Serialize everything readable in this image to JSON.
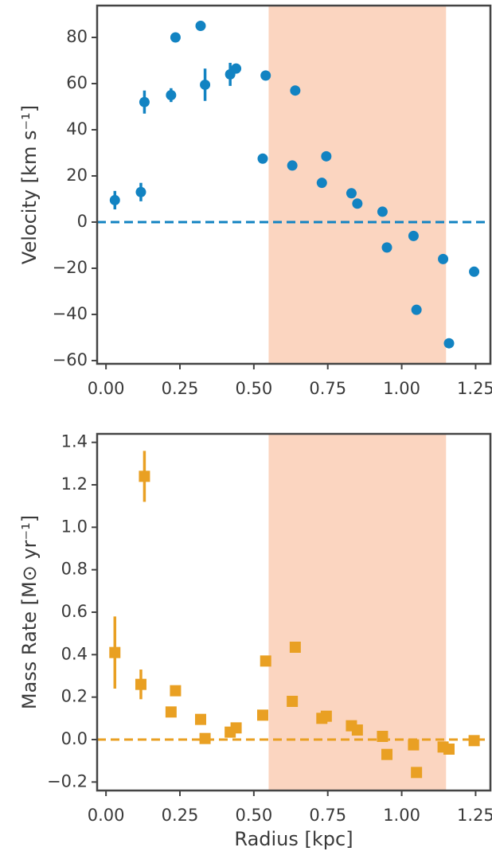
{
  "chart_data": [
    {
      "type": "scatter",
      "marker": "circle",
      "color": "#1283c2",
      "ylabel": "Velocity [km s⁻¹]",
      "x": [
        0.03,
        0.118,
        0.13,
        0.22,
        0.235,
        0.32,
        0.335,
        0.42,
        0.44,
        0.53,
        0.54,
        0.63,
        0.64,
        0.73,
        0.745,
        0.83,
        0.85,
        0.935,
        0.95,
        1.04,
        1.05,
        1.14,
        1.16,
        1.245
      ],
      "values": [
        9.5,
        13,
        52,
        55,
        80,
        85,
        59.5,
        64,
        66.5,
        27.5,
        63.5,
        24.5,
        57,
        17,
        28.5,
        12.5,
        8,
        4.5,
        -11,
        -6,
        -38,
        -16,
        -52.5,
        -21.5
      ],
      "errors": [
        4,
        4,
        5,
        3,
        null,
        null,
        7,
        5,
        null,
        null,
        null,
        null,
        null,
        null,
        null,
        null,
        null,
        null,
        null,
        null,
        null,
        null,
        null,
        null
      ],
      "hline": 0,
      "span": [
        0.55,
        1.15
      ],
      "span_color": "#fbd5c0",
      "xlim": [
        -0.03,
        1.3
      ],
      "ylim": [
        -61.4,
        93.8
      ],
      "xticks": [
        {
          "value": 0,
          "label": "0.00"
        },
        0.25,
        {
          "value": 0.5,
          "label": "0.50"
        },
        0.75,
        {
          "value": 1,
          "label": "1.00"
        },
        1.25
      ],
      "yticks": [
        {
          "value": -60,
          "label": "−60"
        },
        {
          "value": -40,
          "label": "−40"
        },
        {
          "value": -20,
          "label": "−20"
        },
        0,
        20,
        40,
        60,
        80
      ]
    },
    {
      "type": "scatter",
      "marker": "square",
      "color": "#e9a023",
      "ylabel": "Mass Rate [M⊙ yr⁻¹]",
      "xlabel": "Radius [kpc]",
      "x": [
        0.03,
        0.118,
        0.13,
        0.22,
        0.235,
        0.32,
        0.335,
        0.42,
        0.44,
        0.53,
        0.54,
        0.63,
        0.64,
        0.73,
        0.745,
        0.83,
        0.85,
        0.935,
        0.95,
        1.04,
        1.05,
        1.14,
        1.16,
        1.245
      ],
      "values": [
        0.41,
        0.26,
        1.24,
        0.13,
        0.23,
        0.095,
        0.005,
        0.035,
        0.055,
        0.115,
        0.37,
        0.18,
        0.435,
        0.1,
        0.11,
        0.065,
        0.045,
        0.015,
        -0.07,
        -0.025,
        -0.155,
        -0.035,
        -0.045,
        -0.005
      ],
      "errors": [
        0.17,
        0.07,
        0.12,
        null,
        null,
        null,
        null,
        null,
        null,
        null,
        null,
        null,
        null,
        null,
        null,
        null,
        null,
        null,
        null,
        null,
        null,
        null,
        null,
        null
      ],
      "hline": 0,
      "span": [
        0.55,
        1.15
      ],
      "span_color": "#fbd5c0",
      "xlim": [
        -0.03,
        1.3
      ],
      "ylim": [
        -0.24,
        1.44
      ],
      "xticks": [
        {
          "value": 0,
          "label": "0.00"
        },
        0.25,
        {
          "value": 0.5,
          "label": "0.50"
        },
        0.75,
        {
          "value": 1,
          "label": "1.00"
        },
        1.25
      ],
      "yticks": [
        {
          "value": -0.2,
          "label": "−0.2"
        },
        {
          "value": 0,
          "label": "0.0"
        },
        0.2,
        0.4,
        0.6,
        0.8,
        {
          "value": 1,
          "label": "1.0"
        },
        1.2,
        1.4
      ]
    }
  ]
}
